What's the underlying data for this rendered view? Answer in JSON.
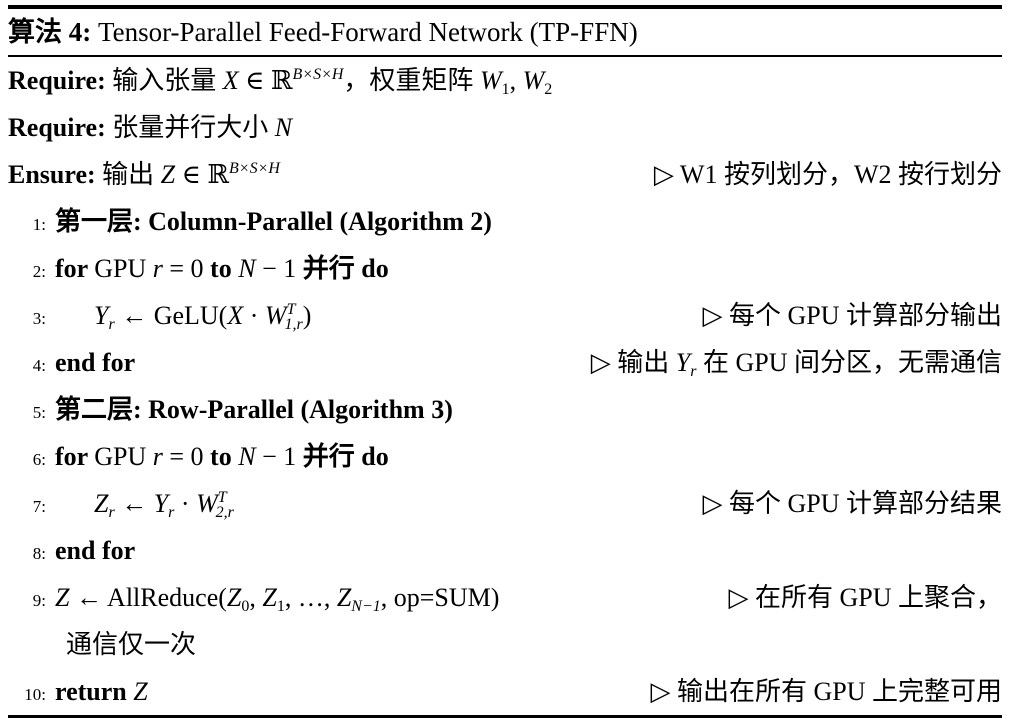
{
  "header": {
    "label": "算法 4:",
    "title": " Tensor-Parallel Feed-Forward Network (TP-FFN)"
  },
  "require1": {
    "label": "Require:",
    "text1": " 输入张量 ",
    "X": "X",
    "in": " ∈ ",
    "R": "ℝ",
    "sup": "B×S×H",
    "text2": "，权重矩阵 ",
    "W1": "W",
    "W1sub": "1",
    "sep": ", ",
    "W2": "W",
    "W2sub": "2"
  },
  "require2": {
    "label": "Require:",
    "text1": " 张量并行大小 ",
    "N": "N"
  },
  "ensure": {
    "label": "Ensure:",
    "text1": " 输出 ",
    "Z": "Z",
    "in": " ∈ ",
    "R": "ℝ",
    "sup": "B×S×H",
    "comment": "▷ W1 按列划分，W2 按行划分"
  },
  "lines": {
    "l1": {
      "num": "1:",
      "text": "第一层: Column-Parallel (Algorithm 2)"
    },
    "l2": {
      "num": "2:",
      "for": "for ",
      "gpu": "GPU ",
      "r": "r",
      "eq": " = 0 ",
      "to": "to ",
      "N": "N",
      "minus": " − 1 ",
      "par": "并行 ",
      "do": "do"
    },
    "l3": {
      "num": "3:",
      "Y": "Y",
      "Ysub": "r",
      "arrow": " ← ",
      "fn": "GeLU(",
      "X": "X",
      "dot": " · ",
      "W": "W",
      "Wsup": "T",
      "Wsub": "1,r",
      "close": ")",
      "comment": "▷ 每个 GPU 计算部分输出"
    },
    "l4": {
      "num": "4:",
      "kw": "end for",
      "c1": "▷ 输出 ",
      "Y": "Y",
      "Ysub": "r",
      "c2": " 在 GPU 间分区，无需通信"
    },
    "l5": {
      "num": "5:",
      "text": "第二层: Row-Parallel (Algorithm 3)"
    },
    "l6": {
      "num": "6:",
      "for": "for ",
      "gpu": "GPU ",
      "r": "r",
      "eq": " = 0 ",
      "to": "to ",
      "N": "N",
      "minus": " − 1 ",
      "par": "并行 ",
      "do": "do"
    },
    "l7": {
      "num": "7:",
      "Z": "Z",
      "Zsub": "r",
      "arrow": " ← ",
      "Y": "Y",
      "Ysub": "r",
      "dot": " · ",
      "W": "W",
      "Wsup": "T",
      "Wsub": "2,r",
      "comment": "▷ 每个 GPU 计算部分结果"
    },
    "l8": {
      "num": "8:",
      "kw": "end for"
    },
    "l9": {
      "num": "9:",
      "Z": "Z",
      "arrow": " ← ",
      "fn": "AllReduce(",
      "Za": "Z",
      "Zasub": "0",
      "sep1": ", ",
      "Zb": "Z",
      "Zbsub": "1",
      "sep2": ", …, ",
      "Zc": "Z",
      "Zcsub": "N−1",
      "tail": ", op=SUM)",
      "comment": "▷ 在所有 GPU 上聚合，",
      "cont": "通信仅一次"
    },
    "l10": {
      "num": "10:",
      "kw": "return ",
      "Z": "Z",
      "comment": "▷ 输出在所有 GPU 上完整可用"
    }
  }
}
